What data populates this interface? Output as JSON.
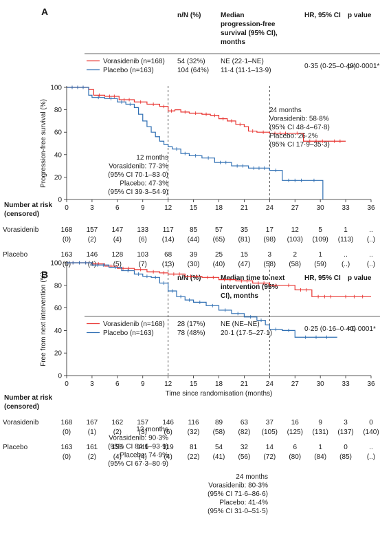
{
  "panels": [
    {
      "letter": "A",
      "table": {
        "headers": {
          "n": "n/N (%)",
          "median": "Median progression-free survival (95% CI), months",
          "hr": "HR, 95% CI",
          "p": "p value"
        },
        "rows": [
          {
            "arm": "Vorasidenib (n=168)",
            "n": "54 (32%)",
            "median": "NE (22·1–NE)"
          },
          {
            "arm": "Placebo (n=163)",
            "n": "104 (64%)",
            "median": "11·4 (11·1–13·9)"
          }
        ],
        "hr": "0·35 (0·25–0·49)",
        "p": "p<0·0001*"
      },
      "annotations": [
        {
          "id": "a24",
          "lines": [
            "24 months",
            "Vorasidenib: 58·8%",
            "(95% CI 48·4–67·8)",
            "Placebo: 26·2%",
            "(95% CI 17·9–35·3)"
          ]
        },
        {
          "id": "a12",
          "lines": [
            "12 months",
            "Vorasidenib: 77·3%",
            "(95% CI 70·1–83·0)",
            "Placebo: 47·3%",
            "(95% CI 39·3–54·9)"
          ]
        }
      ],
      "risk": {
        "header": [
          "Number at risk",
          "(censored)"
        ],
        "rows": [
          {
            "arm": "Vorasidenib",
            "n": [
              "168",
              "157",
              "147",
              "133",
              "117",
              "85",
              "57",
              "35",
              "17",
              "12",
              "5",
              "1",
              ".."
            ],
            "c": [
              "(0)",
              "(2)",
              "(4)",
              "(6)",
              "(14)",
              "(44)",
              "(65)",
              "(81)",
              "(98)",
              "(103)",
              "(109)",
              "(113)",
              "(..)"
            ]
          },
          {
            "arm": "Placebo",
            "n": [
              "163",
              "146",
              "128",
              "103",
              "68",
              "39",
              "25",
              "15",
              "3",
              "2",
              "1",
              "..",
              ".."
            ],
            "c": [
              "(0)",
              "(4)",
              "(5)",
              "(7)",
              "(13)",
              "(30)",
              "(40)",
              "(47)",
              "(58)",
              "(58)",
              "(59)",
              "(..)",
              "(..)"
            ]
          }
        ]
      }
    },
    {
      "letter": "B",
      "table": {
        "headers": {
          "n": "n/N (%)",
          "median": "Median time to next intervention (95% CI), months",
          "hr": "HR, 95% CI",
          "p": "p value"
        },
        "rows": [
          {
            "arm": "Vorasidenib (n=168)",
            "n": "28 (17%)",
            "median": "NE (NE–NE)"
          },
          {
            "arm": "Placebo (n=163)",
            "n": "78 (48%)",
            "median": "20·1 (17·5–27·1)"
          }
        ],
        "hr": "0·25 (0·16–0·40)",
        "p": "<0·0001*"
      },
      "annotations": [
        {
          "id": "b12",
          "lines": [
            "12 months",
            "Vorasidenib: 90·3%",
            "(95% CI 84·6–93·9)",
            "Placebo: 74·9%",
            "(95% CI 67·3–80·9)"
          ]
        },
        {
          "id": "b24",
          "lines": [
            "24 months",
            "Vorasidenib: 80·3%",
            "(95% CI 71·6–86·6)",
            "Placebo: 41·4%",
            "(95% CI 31·0–51·5)"
          ]
        }
      ],
      "risk": {
        "header": [
          "Number at risk",
          "(censored)"
        ],
        "rows": [
          {
            "arm": "Vorasidenib",
            "n": [
              "168",
              "167",
              "162",
              "157",
              "146",
              "116",
              "89",
              "63",
              "37",
              "16",
              "9",
              "3",
              "0"
            ],
            "c": [
              "(0)",
              "(1)",
              "(2)",
              "(3)",
              "(6)",
              "(32)",
              "(58)",
              "(82)",
              "(105)",
              "(125)",
              "(131)",
              "(137)",
              "(140)"
            ]
          },
          {
            "arm": "Placebo",
            "n": [
              "163",
              "161",
              "155",
              "141",
              "119",
              "81",
              "54",
              "32",
              "14",
              "6",
              "1",
              "0",
              ".."
            ],
            "c": [
              "(0)",
              "(2)",
              "(4)",
              "(4)",
              "(4)",
              "(22)",
              "(41)",
              "(56)",
              "(72)",
              "(80)",
              "(84)",
              "(85)",
              "(..)"
            ]
          }
        ]
      }
    }
  ],
  "colors": {
    "vorasidenib": "#e8322f",
    "placebo": "#2f6fb3",
    "axis": "#222222"
  },
  "chart_data": [
    {
      "type": "line",
      "step": true,
      "ylabel": "Progression-free survival (%)",
      "xlabel": "",
      "xlim": [
        0,
        36
      ],
      "ylim": [
        0,
        100
      ],
      "xticks": [
        0,
        3,
        6,
        9,
        12,
        15,
        18,
        21,
        24,
        27,
        30,
        33,
        36
      ],
      "yticks": [
        0,
        20,
        40,
        60,
        80,
        100
      ],
      "reference_lines_x": [
        12,
        24
      ],
      "series": [
        {
          "name": "Vorasidenib (n=168)",
          "color": "#e8322f",
          "x": [
            0,
            2.6,
            3.2,
            4.5,
            6.2,
            8.0,
            9.5,
            11.0,
            12.0,
            12.8,
            13.5,
            14.5,
            16.0,
            17.0,
            18.0,
            19.0,
            20.0,
            21.0,
            21.5,
            22.5,
            24.0,
            26.5,
            28.0,
            31.0,
            33.0
          ],
          "y": [
            100,
            98,
            93,
            92,
            89,
            87,
            85,
            83,
            79,
            80,
            78,
            77,
            76,
            75,
            72,
            70,
            67,
            65,
            61,
            60,
            59,
            59,
            52,
            52,
            52
          ]
        },
        {
          "name": "Placebo (n=163)",
          "color": "#2f6fb3",
          "x": [
            0,
            2.6,
            3.0,
            4.5,
            6.0,
            7.0,
            8.0,
            8.5,
            9.0,
            9.5,
            10.0,
            10.5,
            11.0,
            11.5,
            12.0,
            12.5,
            13.5,
            14.5,
            16.0,
            17.5,
            19.5,
            21.5,
            24.0,
            25.5,
            28.5,
            30.0,
            30.3
          ],
          "y": [
            100,
            93,
            91,
            90,
            87,
            85,
            82,
            76,
            70,
            65,
            60,
            56,
            52,
            49,
            47,
            45,
            41,
            39,
            37,
            33,
            30,
            28,
            26,
            17,
            17,
            17,
            0
          ]
        }
      ]
    },
    {
      "type": "line",
      "step": true,
      "ylabel": "Free from next intervention (%)",
      "xlabel": "Time since randomisation (months)",
      "xlim": [
        0,
        36
      ],
      "ylim": [
        0,
        100
      ],
      "xticks": [
        0,
        3,
        6,
        9,
        12,
        15,
        18,
        21,
        24,
        27,
        30,
        33,
        36
      ],
      "yticks": [
        0,
        20,
        40,
        60,
        80,
        100
      ],
      "reference_lines_x": [
        12,
        24
      ],
      "series": [
        {
          "name": "Vorasidenib (n=168)",
          "color": "#e8322f",
          "x": [
            0,
            3.0,
            4.5,
            6.0,
            8.0,
            9.5,
            11.0,
            12.0,
            14.0,
            16.0,
            18.0,
            20.0,
            22.0,
            24.0,
            25.5,
            27.0,
            29.0,
            32.0,
            36.0
          ],
          "y": [
            100,
            99,
            97,
            95,
            94,
            92,
            91,
            90,
            88,
            87,
            85,
            84,
            82,
            80,
            80,
            76,
            70,
            70,
            70
          ]
        },
        {
          "name": "Placebo (n=163)",
          "color": "#2f6fb3",
          "x": [
            0,
            3.0,
            5.0,
            6.5,
            8.0,
            9.0,
            10.0,
            11.0,
            12.0,
            13.0,
            14.0,
            15.0,
            16.5,
            18.0,
            19.5,
            21.0,
            22.5,
            23.5,
            24.0,
            25.5,
            27.0,
            32.0
          ],
          "y": [
            100,
            98,
            96,
            93,
            90,
            88,
            87,
            82,
            75,
            70,
            67,
            65,
            62,
            58,
            55,
            52,
            49,
            45,
            41,
            40,
            34,
            34
          ]
        }
      ]
    }
  ]
}
